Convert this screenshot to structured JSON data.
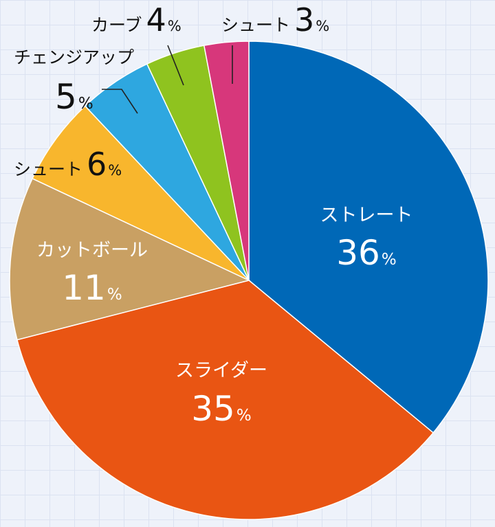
{
  "chart_data": {
    "type": "pie",
    "start": "12 o'clock",
    "direction": "clockwise",
    "slices": [
      {
        "label": "ストレート",
        "value": 36,
        "color": "#0068b7",
        "label_position": "inside",
        "text_color": "#ffffff"
      },
      {
        "label": "スライダー",
        "value": 35,
        "color": "#e95513",
        "label_position": "inside",
        "text_color": "#ffffff"
      },
      {
        "label": "カットボール",
        "value": 11,
        "color": "#c9a063",
        "label_position": "inside",
        "text_color": "#ffffff"
      },
      {
        "label": "シュート",
        "value": 6,
        "color": "#f8b62d",
        "label_position": "outside",
        "text_color": "#111111"
      },
      {
        "label": "チェンジアップ",
        "value": 5,
        "color": "#2ea7e0",
        "label_position": "outside",
        "text_color": "#111111"
      },
      {
        "label": "カーブ",
        "value": 4,
        "color": "#8fc31f",
        "label_position": "outside",
        "text_color": "#111111"
      },
      {
        "label": "シュート",
        "value": 3,
        "color": "#d7377b",
        "label_position": "outside",
        "text_color": "#111111"
      }
    ],
    "unit": "%"
  }
}
